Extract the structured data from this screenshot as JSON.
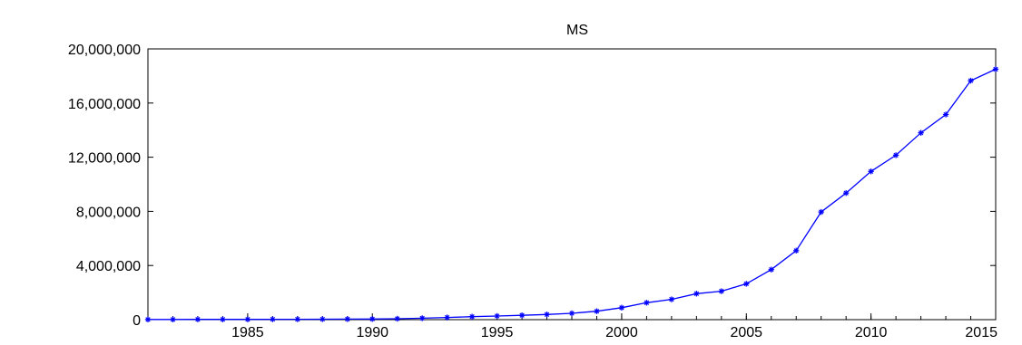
{
  "chart_data": {
    "type": "line",
    "title": "MS",
    "xlabel": "",
    "ylabel": "",
    "xlim": [
      1981,
      2015
    ],
    "ylim": [
      0,
      20000000
    ],
    "y_ticks": [
      0,
      4000000,
      8000000,
      12000000,
      16000000,
      20000000
    ],
    "y_tick_labels": [
      "0",
      "4,000,000",
      "8,000,000",
      "12,000,000",
      "16,000,000",
      "20,000,000"
    ],
    "x_ticks": [
      1985,
      1990,
      1995,
      2000,
      2005,
      2010,
      2015
    ],
    "x_tick_labels": [
      "1985",
      "1990",
      "1995",
      "2000",
      "2005",
      "2010",
      "2015"
    ],
    "grid": false,
    "legend": "none",
    "series": [
      {
        "color": "#0000ff",
        "marker": "asterisk",
        "x": [
          1981,
          1982,
          1983,
          1984,
          1985,
          1986,
          1987,
          1988,
          1989,
          1990,
          1991,
          1992,
          1993,
          1994,
          1995,
          1996,
          1997,
          1998,
          1999,
          2000,
          2001,
          2002,
          2003,
          2004,
          2005,
          2006,
          2007,
          2008,
          2009,
          2010,
          2011,
          2012,
          2013,
          2014,
          2015
        ],
        "values": [
          15000,
          16000,
          18000,
          20000,
          22000,
          25000,
          28000,
          32000,
          38000,
          48000,
          70000,
          110000,
          160000,
          220000,
          270000,
          320000,
          380000,
          470000,
          620000,
          880000,
          1250000,
          1500000,
          1920000,
          2100000,
          2650000,
          3700000,
          5100000,
          7950000,
          9350000,
          10950000,
          12150000,
          13800000,
          15150000,
          17650000,
          18500000
        ]
      }
    ]
  }
}
